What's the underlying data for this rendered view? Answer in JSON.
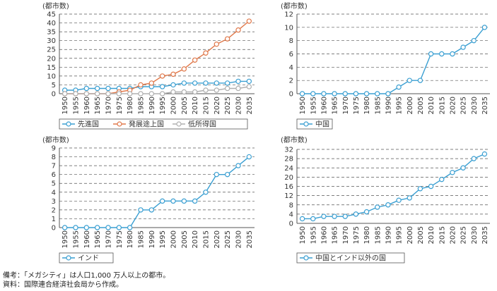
{
  "chart_data": [
    {
      "type": "line",
      "unit_label": "(都市数)",
      "categories": [
        "1950",
        "1955",
        "1960",
        "1965",
        "1970",
        "1975",
        "1980",
        "1985",
        "1990",
        "1995",
        "2000",
        "2005",
        "2010",
        "2015",
        "2020",
        "2025",
        "2030",
        "2035"
      ],
      "ylim": [
        0,
        45
      ],
      "yticks": [
        0,
        5,
        10,
        15,
        20,
        25,
        30,
        35,
        40,
        45
      ],
      "grid": true,
      "legend_position": "bottom",
      "series": [
        {
          "name": "先進国",
          "color": "#3a9fd2",
          "marker": "open-circle",
          "values": [
            2,
            2,
            3,
            3,
            3,
            3,
            3,
            4,
            4,
            4,
            5,
            6,
            6,
            6,
            6,
            6,
            7,
            7
          ]
        },
        {
          "name": "発展途上国",
          "color": "#e0784a",
          "marker": "open-circle",
          "values": [
            0,
            0,
            0,
            0,
            0,
            1,
            2,
            5,
            6,
            10,
            11,
            14,
            19,
            23,
            28,
            31,
            36,
            41
          ]
        },
        {
          "name": "低所得国",
          "color": "#b0b0b0",
          "marker": "open-circle",
          "values": [
            0,
            0,
            0,
            0,
            0,
            0,
            0,
            0,
            0,
            0,
            1,
            1,
            1,
            2,
            2,
            3,
            3,
            4
          ]
        }
      ]
    },
    {
      "type": "line",
      "unit_label": "(都市数)",
      "categories": [
        "1950",
        "1955",
        "1960",
        "1965",
        "1970",
        "1975",
        "1980",
        "1985",
        "1990",
        "1995",
        "2000",
        "2005",
        "2010",
        "2015",
        "2020",
        "2025",
        "2030",
        "2035"
      ],
      "ylim": [
        0,
        12
      ],
      "yticks": [
        0,
        2,
        4,
        6,
        8,
        10,
        12
      ],
      "grid": true,
      "legend_position": "bottom",
      "series": [
        {
          "name": "中国",
          "color": "#3a9fd2",
          "marker": "open-circle",
          "values": [
            0,
            0,
            0,
            0,
            0,
            0,
            0,
            0,
            0,
            1,
            2,
            2,
            6,
            6,
            6,
            7,
            8,
            10
          ]
        }
      ]
    },
    {
      "type": "line",
      "unit_label": "(都市数)",
      "categories": [
        "1950",
        "1955",
        "1960",
        "1965",
        "1970",
        "1975",
        "1980",
        "1985",
        "1990",
        "1995",
        "2000",
        "2005",
        "2010",
        "2015",
        "2020",
        "2025",
        "2030",
        "2035"
      ],
      "ylim": [
        0,
        9
      ],
      "yticks": [
        0,
        1,
        2,
        3,
        4,
        5,
        6,
        7,
        8,
        9
      ],
      "grid": true,
      "legend_position": "bottom",
      "series": [
        {
          "name": "インド",
          "color": "#3a9fd2",
          "marker": "open-circle",
          "values": [
            0,
            0,
            0,
            0,
            0,
            0,
            0,
            2,
            2,
            3,
            3,
            3,
            3,
            4,
            6,
            6,
            7,
            8
          ]
        }
      ]
    },
    {
      "type": "line",
      "unit_label": "(都市数)",
      "categories": [
        "1950",
        "1955",
        "1960",
        "1965",
        "1970",
        "1975",
        "1980",
        "1985",
        "1990",
        "1995",
        "2000",
        "2005",
        "2010",
        "2015",
        "2020",
        "2025",
        "2030",
        "2035"
      ],
      "ylim": [
        0,
        32
      ],
      "yticks": [
        0,
        4,
        8,
        12,
        16,
        20,
        24,
        28,
        32
      ],
      "grid": true,
      "legend_position": "bottom",
      "series": [
        {
          "name": "中国とインド以外の国",
          "color": "#3a9fd2",
          "marker": "open-circle",
          "values": [
            2,
            2,
            3,
            3,
            3,
            4,
            5,
            7,
            8,
            10,
            11,
            15,
            16,
            19,
            22,
            24,
            28,
            30
          ]
        }
      ]
    }
  ],
  "notes": {
    "remark": "備考：「メガシティ」は人口1,000 万人以上の都市。",
    "source": "資料：国際連合経済社会局から作成。"
  }
}
